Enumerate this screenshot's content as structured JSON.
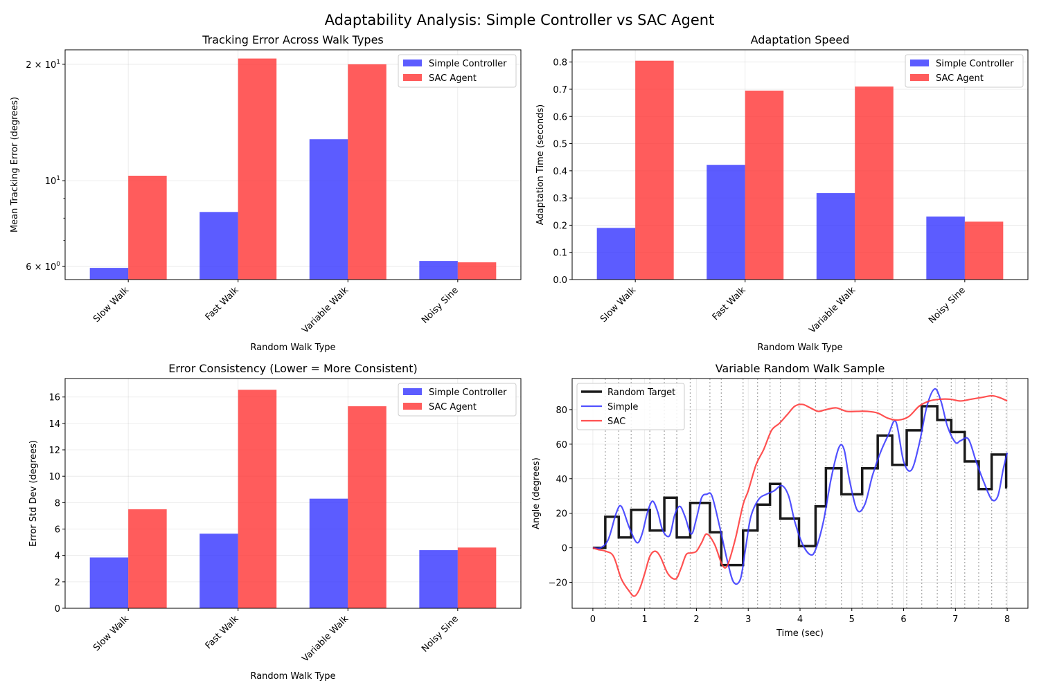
{
  "suptitle": "Adaptability Analysis: Simple Controller vs SAC Agent",
  "chart_data": [
    {
      "type": "bar",
      "title": "Tracking Error Across Walk Types",
      "xlabel": "Random Walk Type",
      "ylabel": "Mean Tracking Error (degrees)",
      "yscale": "log",
      "ylim": [
        5.55,
        21.8
      ],
      "yticks": [
        {
          "value": 6,
          "base": "6 × 10",
          "exp": "0"
        },
        {
          "value": 10,
          "base": "10",
          "exp": "1"
        },
        {
          "value": 20,
          "base": "2 × 10",
          "exp": "1"
        }
      ],
      "categories": [
        "Slow Walk",
        "Fast Walk",
        "Variable Walk",
        "Noisy Sine"
      ],
      "series": [
        {
          "name": "Simple Controller",
          "color": "#3333ff",
          "values": [
            5.95,
            8.3,
            12.8,
            6.2
          ]
        },
        {
          "name": "SAC Agent",
          "color": "#ff3333",
          "values": [
            10.3,
            20.7,
            20.0,
            6.15
          ]
        }
      ],
      "legend": "top-right",
      "grid": true
    },
    {
      "type": "bar",
      "title": "Adaptation Speed",
      "xlabel": "Random Walk Type",
      "ylabel": "Adaptation Time (seconds)",
      "ylim": [
        0,
        0.845
      ],
      "yticks": [
        "0.0",
        "0.1",
        "0.2",
        "0.3",
        "0.4",
        "0.5",
        "0.6",
        "0.7",
        "0.8"
      ],
      "categories": [
        "Slow Walk",
        "Fast Walk",
        "Variable Walk",
        "Noisy Sine"
      ],
      "series": [
        {
          "name": "Simple Controller",
          "color": "#3333ff",
          "values": [
            0.19,
            0.422,
            0.318,
            0.232
          ]
        },
        {
          "name": "SAC Agent",
          "color": "#ff3333",
          "values": [
            0.805,
            0.695,
            0.71,
            0.213
          ]
        }
      ],
      "legend": "top-right",
      "grid": true
    },
    {
      "type": "bar",
      "title": "Error Consistency (Lower = More Consistent)",
      "xlabel": "Random Walk Type",
      "ylabel": "Error Std Dev (degrees)",
      "ylim": [
        0,
        17.4
      ],
      "yticks": [
        "0",
        "2",
        "4",
        "6",
        "8",
        "10",
        "12",
        "14",
        "16"
      ],
      "categories": [
        "Slow Walk",
        "Fast Walk",
        "Variable Walk",
        "Noisy Sine"
      ],
      "series": [
        {
          "name": "Simple Controller",
          "color": "#3333ff",
          "values": [
            3.85,
            5.65,
            8.3,
            4.4
          ]
        },
        {
          "name": "SAC Agent",
          "color": "#ff3333",
          "values": [
            7.5,
            16.55,
            15.3,
            4.6
          ]
        }
      ],
      "legend": "top-right",
      "grid": true
    },
    {
      "type": "line",
      "title": "Variable Random Walk Sample",
      "xlabel": "Time (sec)",
      "ylabel": "Angle (degrees)",
      "xlim": [
        -0.4,
        8.4
      ],
      "ylim": [
        -35,
        98
      ],
      "xticks": [
        "0",
        "1",
        "2",
        "3",
        "4",
        "5",
        "6",
        "7",
        "8"
      ],
      "yticks": [
        "−20",
        "0",
        "20",
        "40",
        "60",
        "80"
      ],
      "grid": true,
      "legend": "top-left",
      "change_points": [
        0.24,
        0.5,
        0.74,
        1.1,
        1.38,
        1.62,
        1.88,
        2.26,
        2.48,
        2.9,
        3.18,
        3.42,
        3.62,
        3.98,
        4.3,
        4.5,
        4.8,
        5.2,
        5.5,
        5.78,
        6.06,
        6.35,
        6.65,
        6.92,
        7.18,
        7.45,
        7.7,
        7.98
      ],
      "series": [
        {
          "name": "Random Target",
          "color": "#1a1a1a",
          "x": [
            0,
            0.24,
            0.24,
            0.5,
            0.5,
            0.74,
            0.74,
            1.1,
            1.1,
            1.38,
            1.38,
            1.62,
            1.62,
            1.88,
            1.88,
            2.26,
            2.26,
            2.48,
            2.48,
            2.9,
            2.9,
            3.18,
            3.18,
            3.42,
            3.42,
            3.62,
            3.62,
            3.98,
            3.98,
            4.3,
            4.3,
            4.5,
            4.5,
            4.8,
            4.8,
            5.2,
            5.2,
            5.5,
            5.5,
            5.78,
            5.78,
            6.06,
            6.06,
            6.35,
            6.35,
            6.65,
            6.65,
            6.92,
            6.92,
            7.18,
            7.18,
            7.45,
            7.45,
            7.7,
            7.7,
            7.98,
            7.98,
            8.0
          ],
          "y": [
            0,
            0,
            18,
            18,
            6,
            6,
            22,
            22,
            10,
            10,
            29,
            29,
            6,
            6,
            26,
            26,
            9,
            9,
            -10,
            -10,
            10,
            10,
            25,
            25,
            37,
            37,
            17,
            17,
            1,
            1,
            24,
            24,
            46,
            46,
            31,
            31,
            46,
            46,
            65,
            65,
            48,
            48,
            68,
            68,
            82,
            82,
            74,
            74,
            67,
            67,
            50,
            50,
            34,
            34,
            54,
            54,
            35,
            35
          ]
        },
        {
          "name": "Simple",
          "color": "#3333ff",
          "x": [
            0,
            0.15,
            0.3,
            0.45,
            0.55,
            0.7,
            0.85,
            0.95,
            1.05,
            1.15,
            1.25,
            1.35,
            1.48,
            1.58,
            1.68,
            1.78,
            1.9,
            2.0,
            2.1,
            2.2,
            2.3,
            2.45,
            2.6,
            2.72,
            2.85,
            2.95,
            3.05,
            3.2,
            3.35,
            3.5,
            3.65,
            3.78,
            3.9,
            4.05,
            4.2,
            4.3,
            4.45,
            4.6,
            4.75,
            4.85,
            4.95,
            5.1,
            5.25,
            5.4,
            5.55,
            5.7,
            5.85,
            6.0,
            6.15,
            6.3,
            6.45,
            6.6,
            6.72,
            6.85,
            7.0,
            7.1,
            7.25,
            7.4,
            7.55,
            7.7,
            7.82,
            7.92,
            8.0
          ],
          "y": [
            0,
            0,
            5,
            20,
            24,
            12,
            3,
            8,
            20,
            27,
            21,
            10,
            7,
            19,
            24,
            18,
            8,
            17,
            29,
            31,
            30,
            12,
            -8,
            -20,
            -18,
            0,
            18,
            28,
            31,
            33,
            36,
            30,
            15,
            2,
            -4,
            -1,
            15,
            40,
            58,
            57,
            40,
            22,
            25,
            42,
            55,
            65,
            73,
            50,
            45,
            60,
            82,
            92,
            85,
            70,
            61,
            62,
            63,
            50,
            38,
            28,
            30,
            45,
            55
          ]
        },
        {
          "name": "SAC",
          "color": "#ff3333",
          "x": [
            0,
            0.1,
            0.25,
            0.4,
            0.55,
            0.7,
            0.8,
            0.9,
            1.0,
            1.1,
            1.2,
            1.3,
            1.45,
            1.6,
            1.7,
            1.8,
            1.9,
            2.0,
            2.1,
            2.2,
            2.35,
            2.5,
            2.6,
            2.75,
            2.9,
            3.0,
            3.15,
            3.3,
            3.45,
            3.6,
            3.75,
            3.9,
            4.05,
            4.2,
            4.35,
            4.5,
            4.7,
            4.9,
            5.1,
            5.3,
            5.5,
            5.7,
            5.9,
            6.1,
            6.3,
            6.5,
            6.7,
            6.9,
            7.1,
            7.3,
            7.5,
            7.7,
            7.85,
            8.0
          ],
          "y": [
            0,
            -1,
            -2,
            -5,
            -18,
            -25,
            -28,
            -24,
            -15,
            -5,
            -2,
            -5,
            -15,
            -18,
            -12,
            -4,
            -3,
            -2,
            3,
            8,
            2,
            -10,
            -10,
            5,
            25,
            33,
            48,
            57,
            68,
            72,
            77,
            82,
            83,
            81,
            79,
            80,
            81,
            79,
            79,
            79,
            78,
            75,
            74,
            76,
            82,
            85,
            86,
            86,
            85,
            86,
            87,
            88,
            87,
            85
          ]
        }
      ]
    }
  ]
}
